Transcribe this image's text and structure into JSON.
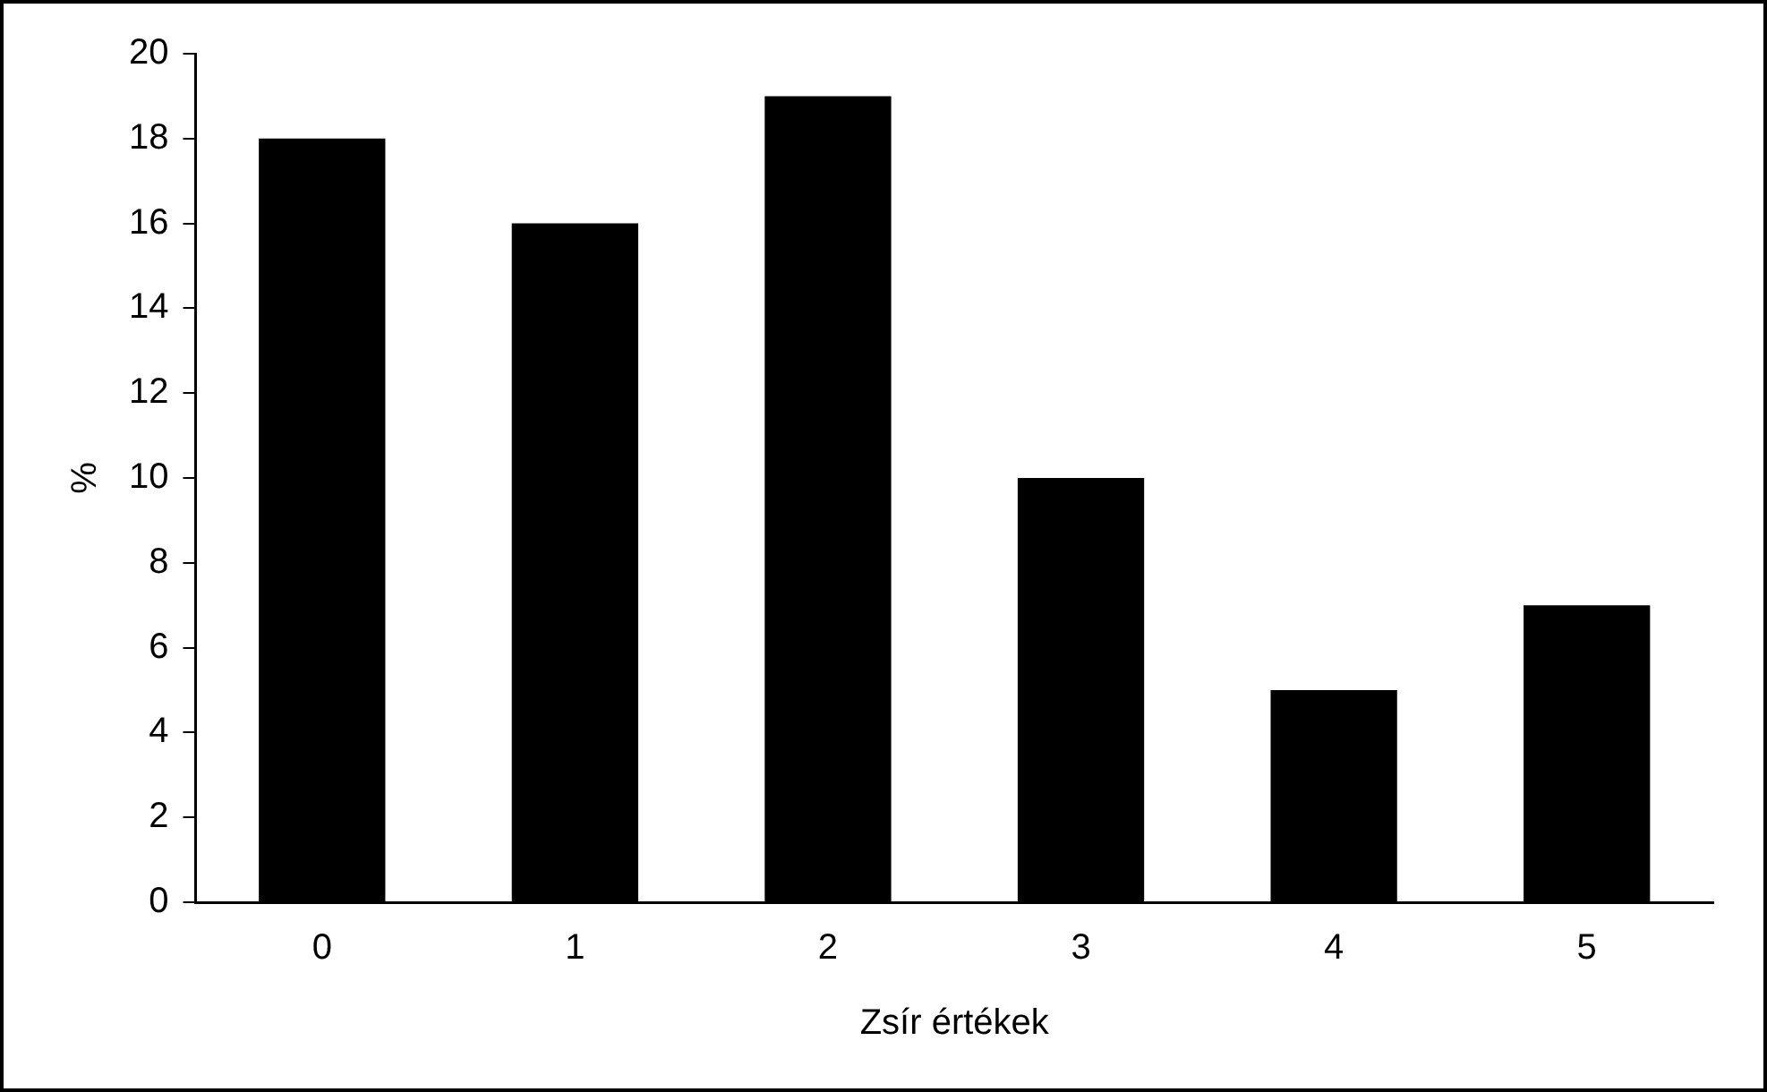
{
  "chart_data": {
    "type": "bar",
    "xlabel": "Zsír értékek",
    "ylabel": "%",
    "categories": [
      "0",
      "1",
      "2",
      "3",
      "4",
      "5"
    ],
    "values": [
      18,
      16,
      19,
      10,
      5,
      7
    ],
    "color": "#000000",
    "ylim": [
      0,
      20
    ],
    "yticks": [
      0,
      2,
      4,
      6,
      8,
      10,
      12,
      14,
      16,
      18,
      20
    ],
    "grid": false,
    "legend": false
  }
}
